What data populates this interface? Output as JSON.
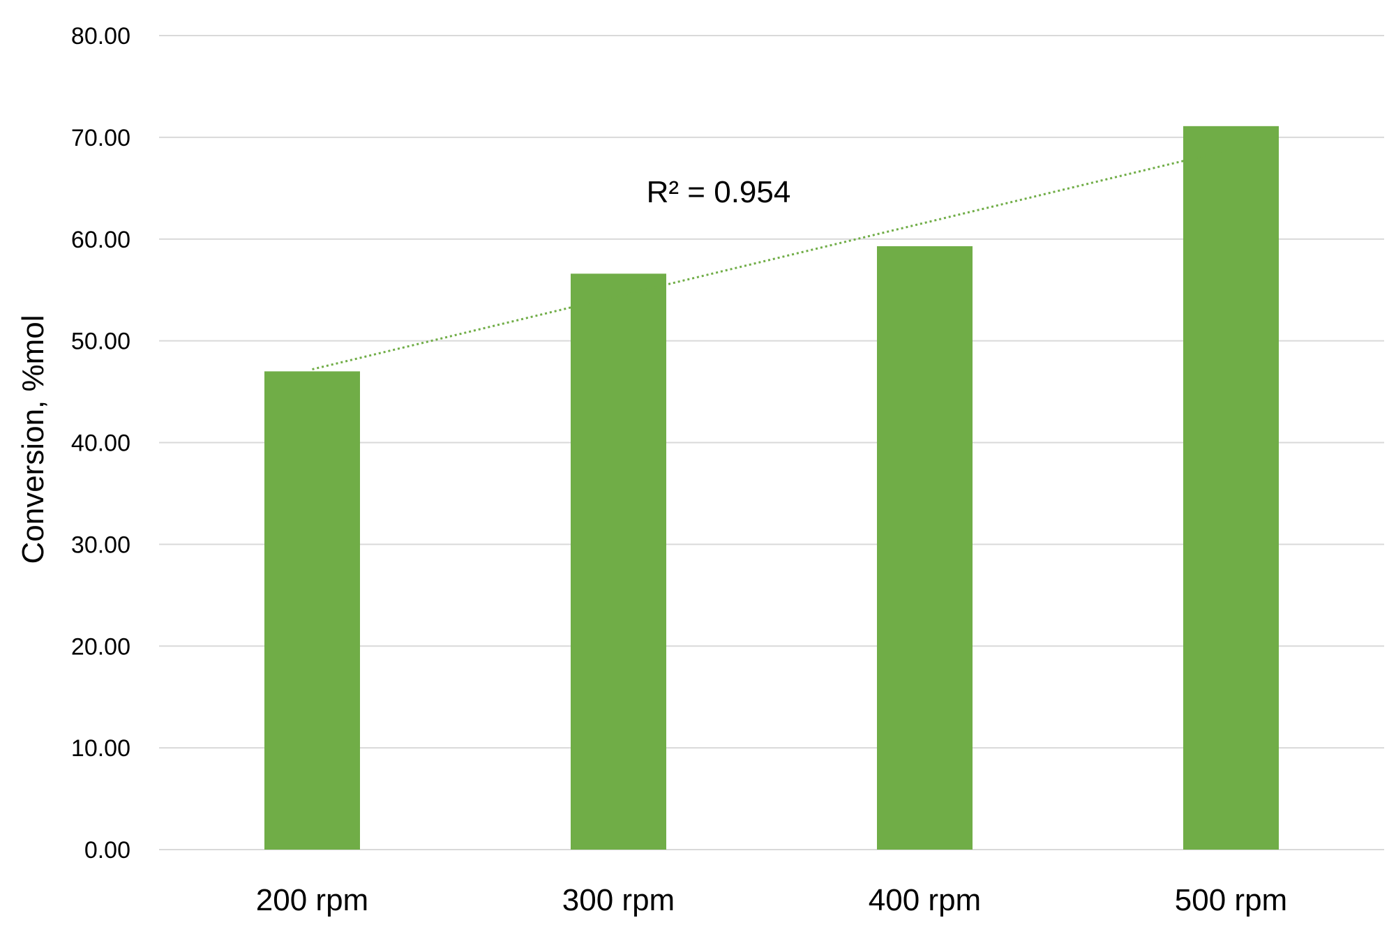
{
  "chart_data": {
    "type": "bar",
    "categories": [
      "200 rpm",
      "300 rpm",
      "400 rpm",
      "500 rpm"
    ],
    "values": [
      47.0,
      56.6,
      59.3,
      71.1
    ],
    "ylabel": "Conversion, %mol",
    "ylim": [
      0,
      80
    ],
    "yticks": [
      "0.00",
      "10.00",
      "20.00",
      "30.00",
      "40.00",
      "50.00",
      "60.00",
      "70.00",
      "80.00"
    ],
    "grid": true,
    "legend": "none",
    "trendline": {
      "type": "linear",
      "style": "dotted",
      "start_value": 47.2,
      "end_value": 68.8
    },
    "annotations": [
      {
        "text": "R² = 0.954"
      }
    ],
    "colors": {
      "bar": "#70AD47",
      "trendline": "#70AD47",
      "grid": "#D9D9D9"
    }
  }
}
